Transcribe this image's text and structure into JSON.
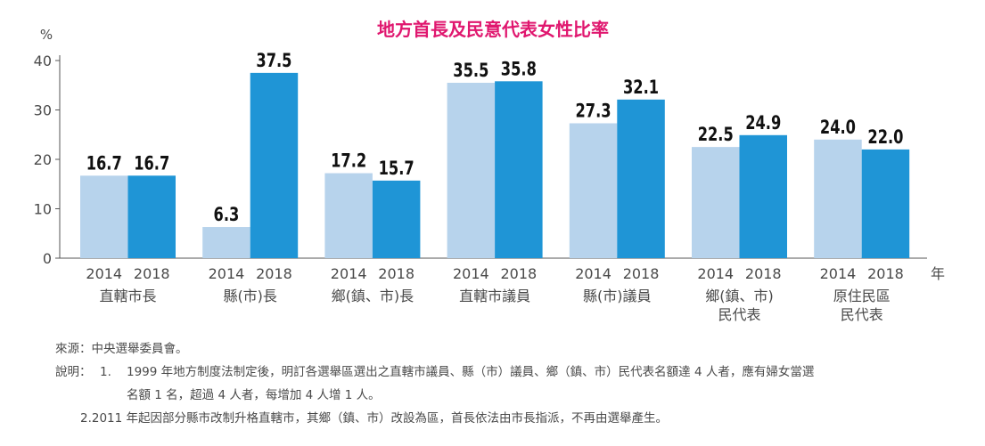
{
  "chart_data": {
    "type": "bar",
    "title": "地方首長及民意代表女性比率",
    "ylabel": "%",
    "xlabel": "年",
    "ylim": [
      0,
      40
    ],
    "yticks": [
      0,
      10,
      20,
      30,
      40
    ],
    "grid": false,
    "categories": [
      [
        "直轄市長"
      ],
      [
        "縣(市)長"
      ],
      [
        "鄉(鎮、市)長"
      ],
      [
        "直轄市議員"
      ],
      [
        "縣(市)議員"
      ],
      [
        "鄉(鎮、市)",
        "民代表"
      ],
      [
        "原住民區",
        "民代表"
      ]
    ],
    "series": [
      {
        "name": "2014",
        "color": "#b7d3ec",
        "values": [
          16.7,
          6.3,
          17.2,
          35.5,
          27.3,
          22.5,
          24.0
        ],
        "labels": [
          "16.7",
          "6.3",
          "17.2",
          "35.5",
          "27.3",
          "22.5",
          "24.0"
        ]
      },
      {
        "name": "2018",
        "color": "#1f95d6",
        "values": [
          16.7,
          37.5,
          15.7,
          35.8,
          32.1,
          24.9,
          22.0
        ],
        "labels": [
          "16.7",
          "37.5",
          "15.7",
          "35.8",
          "32.1",
          "24.9",
          "22.0"
        ]
      }
    ]
  },
  "notes": {
    "source": "來源：中央選舉委員會。",
    "label": "說明：",
    "item1_num": "1.",
    "item1_line1": "1999 年地方制度法制定後，明訂各選舉區選出之直轄市議員、縣（市）議員、鄉（鎮、市）民代表名額達 4 人者，應有婦女當選",
    "item1_line2": "名額 1 名，超過 4 人者，每增加 4 人增 1 人。",
    "item2": "2.2011 年起因部分縣市改制升格直轄市，其鄉（鎮、市）改設為區，首長依法由市長指派，不再由選舉產生。"
  }
}
